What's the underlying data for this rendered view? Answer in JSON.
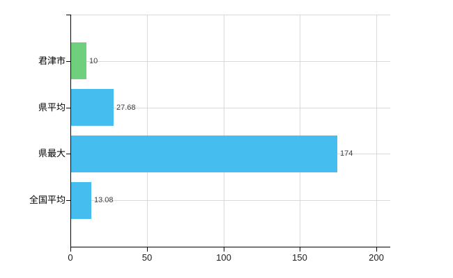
{
  "chart_data": {
    "type": "bar",
    "orientation": "horizontal",
    "title": "",
    "xlabel": "",
    "ylabel": "",
    "categories": [
      "君津市",
      "県平均",
      "県最大",
      "全国平均"
    ],
    "values": [
      10,
      27.68,
      174,
      13.08
    ],
    "value_labels": [
      "10",
      "27.68",
      "174",
      "13.08"
    ],
    "bar_colors": [
      "#6FCF7D",
      "#45BEEF",
      "#45BEEF",
      "#45BEEF"
    ],
    "xlim": [
      0,
      200
    ],
    "x_ticks": [
      0,
      50,
      100,
      150,
      200
    ],
    "x_tick_labels": [
      "0",
      "50",
      "100",
      "150",
      "200"
    ],
    "grid": true,
    "legend": false
  },
  "colors": {
    "background": "#ffffff",
    "grid": "#d9d9d9",
    "axis": "#000000",
    "bar_green": "#6FCF7D",
    "bar_blue": "#45BEEF",
    "value_label_text": "#3c3c3c",
    "category_label_text": "#000000",
    "tick_label_text": "#1a1a1a"
  }
}
